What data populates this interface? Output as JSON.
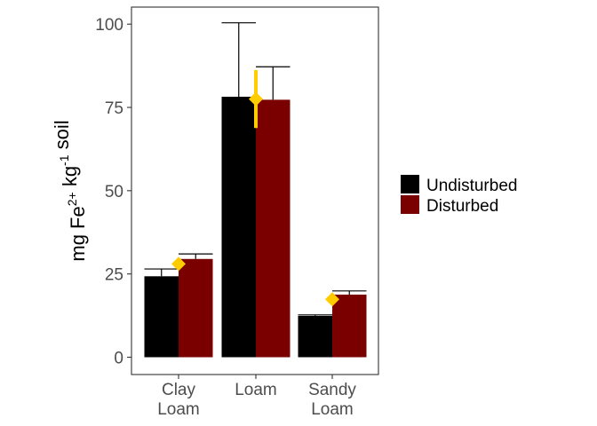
{
  "chart_data": {
    "type": "bar",
    "categories": [
      [
        "Clay",
        "Loam"
      ],
      [
        "Loam"
      ],
      [
        "Sandy",
        "Loam"
      ]
    ],
    "ylabel": {
      "parts": [
        {
          "text": "mg Fe"
        },
        {
          "text": "2+",
          "sup": true
        },
        {
          "text": " kg"
        },
        {
          "text": "-1",
          "sup": true
        },
        {
          "text": " soil"
        }
      ]
    },
    "ylim": [
      -5,
      105
    ],
    "yticks": [
      0,
      25,
      50,
      75,
      100
    ],
    "ytick_labels": [
      "0",
      "25",
      "50",
      "75",
      "100"
    ],
    "grid": false,
    "legend_position": "right",
    "series": [
      {
        "name": "Undisturbed",
        "color": "#000000",
        "values": [
          24.3,
          78.2,
          12.4
        ],
        "error_upper": [
          26.5,
          100.4,
          12.7
        ]
      },
      {
        "name": "Disturbed",
        "color": "#7a0000",
        "values": [
          29.5,
          77.3,
          18.8
        ],
        "error_upper": [
          31.0,
          87.2,
          19.9
        ]
      }
    ],
    "overlay_points": {
      "color": "#ffcc00",
      "marker": "diamond",
      "values": [
        28.0,
        77.5,
        17.4
      ],
      "error_low": [
        null,
        68.8,
        null
      ],
      "error_high": [
        null,
        86.2,
        null
      ]
    }
  }
}
